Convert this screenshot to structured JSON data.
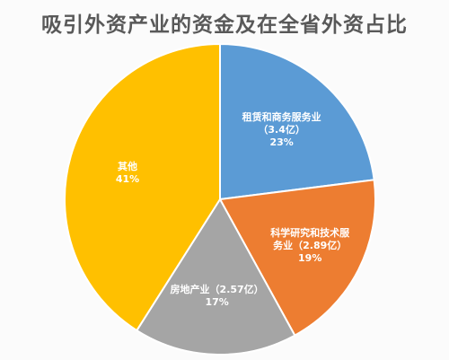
{
  "chart_data": {
    "type": "pie",
    "title": "吸引外资产业的资金及在全省外资占比",
    "slices": [
      {
        "name": "租赁和商务服务业",
        "label_lines": [
          "租赁和商务服务业",
          "（3.4亿）",
          "23%"
        ],
        "value": 23,
        "color": "#5b9bd5"
      },
      {
        "name": "科学研究和技术服务业",
        "label_lines": [
          "科学研究和技术服",
          "务业（2.89亿）",
          "19%"
        ],
        "value": 19,
        "color": "#ed7d31"
      },
      {
        "name": "房地产业",
        "label_lines": [
          "房地产业（2.57亿）",
          "17%"
        ],
        "value": 17,
        "color": "#a5a5a5"
      },
      {
        "name": "其他",
        "label_lines": [
          "其他",
          "41%"
        ],
        "value": 41,
        "color": "#ffc000"
      }
    ]
  }
}
